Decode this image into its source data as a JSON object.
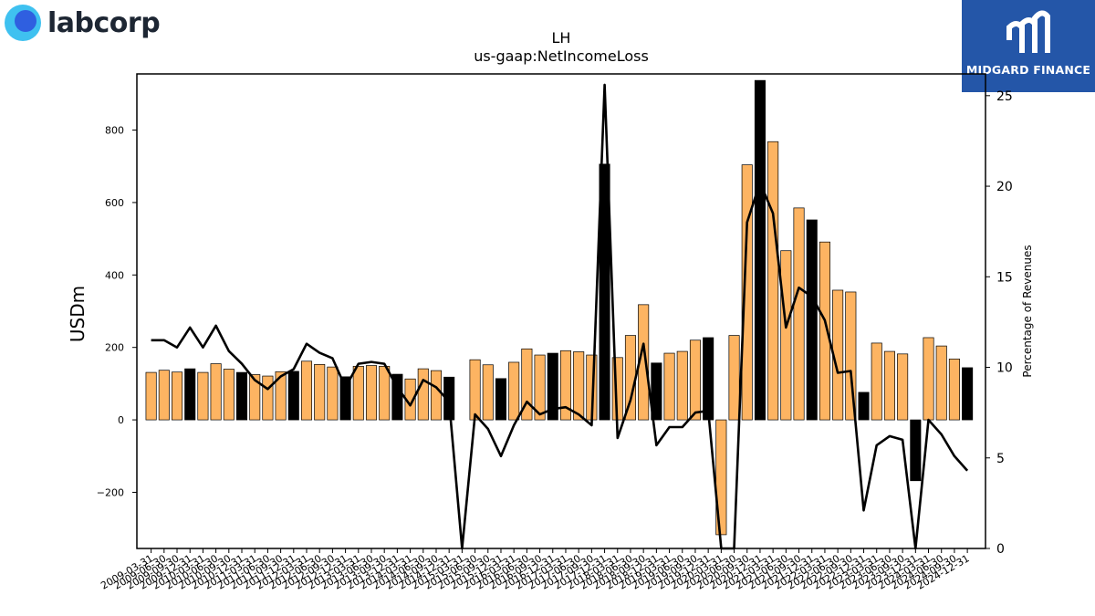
{
  "header": {
    "company_logo_text": "labcorp",
    "sponsor_logo_text": "MIDGARD FINANCE"
  },
  "colors": {
    "bar_normal": "#fdb462",
    "bar_highlight": "#000000",
    "line": "#000000",
    "logo_ring": "#3fc1f0",
    "logo_core": "#2f5fe0",
    "sponsor_bg": "#2456a8"
  },
  "chart_data": {
    "type": "bar",
    "title": "LH",
    "subtitle": "us-gaap:NetIncomeLoss",
    "ylabel": "USDm",
    "y2label": "Percentage of Revenues",
    "ylim": [
      -355,
      955
    ],
    "y2lim": [
      0,
      26.2
    ],
    "yticks": [
      -200,
      0,
      200,
      400,
      600,
      800
    ],
    "y2ticks": [
      0,
      5,
      10,
      15,
      20,
      25
    ],
    "grid": false,
    "categories": [
      "2009-03-31",
      "2009-06-30",
      "2009-09-30",
      "2009-12-31",
      "2010-03-31",
      "2010-06-30",
      "2010-09-30",
      "2010-12-31",
      "2011-03-31",
      "2011-06-30",
      "2011-09-30",
      "2011-12-31",
      "2012-03-31",
      "2012-06-30",
      "2012-09-30",
      "2012-12-31",
      "2013-03-31",
      "2013-06-30",
      "2013-09-30",
      "2013-12-31",
      "2014-03-31",
      "2014-06-30",
      "2014-09-30",
      "2014-12-31",
      "2015-03-31",
      "2015-06-30",
      "2015-09-30",
      "2015-12-31",
      "2016-03-31",
      "2016-06-30",
      "2016-09-30",
      "2016-12-31",
      "2017-03-31",
      "2017-06-30",
      "2017-09-30",
      "2017-12-31",
      "2018-03-31",
      "2018-06-30",
      "2018-09-30",
      "2018-12-31",
      "2019-03-31",
      "2019-06-30",
      "2019-09-30",
      "2019-12-31",
      "2020-03-31",
      "2020-06-30",
      "2020-09-30",
      "2020-12-31",
      "2021-03-31",
      "2021-06-30",
      "2021-09-30",
      "2021-12-31",
      "2022-03-31",
      "2022-06-30",
      "2022-09-30",
      "2022-12-31",
      "2023-03-31",
      "2023-06-30",
      "2023-09-30",
      "2023-12-31",
      "2024-03-31",
      "2024-06-30",
      "2024-09-30",
      "2024-12-31"
    ],
    "series": [
      {
        "type": "bar",
        "values": [
          131,
          137,
          132,
          141,
          131,
          155,
          140,
          131,
          125,
          121,
          133,
          134,
          162,
          153,
          146,
          119,
          148,
          150,
          148,
          126,
          113,
          141,
          136,
          118,
          null,
          166,
          152,
          114,
          159,
          196,
          179,
          184,
          191,
          188,
          179,
          706,
          172,
          233,
          318,
          157,
          184,
          189,
          220,
          227,
          -317,
          233,
          704,
          937,
          768,
          467,
          585,
          552,
          491,
          358,
          353,
          76,
          212,
          189,
          182,
          -168,
          227,
          204,
          168,
          144
        ],
        "highlight_index": [
          3,
          7,
          11,
          15,
          19,
          23,
          27,
          31,
          35,
          39,
          43,
          47,
          51,
          55,
          59,
          63
        ]
      },
      {
        "type": "line",
        "axis": "secondary",
        "values": [
          11.5,
          11.5,
          11.1,
          12.2,
          11.1,
          12.3,
          10.9,
          10.2,
          9.3,
          8.8,
          9.5,
          9.9,
          11.3,
          10.8,
          10.5,
          8.9,
          10.2,
          10.3,
          10.2,
          8.9,
          7.9,
          9.3,
          8.9,
          8.1,
          0,
          7.4,
          6.6,
          5.1,
          6.8,
          8.1,
          7.4,
          7.7,
          7.8,
          7.4,
          6.8,
          25.6,
          6.1,
          8.2,
          11.3,
          5.7,
          6.7,
          6.7,
          7.5,
          7.6,
          0,
          0,
          18.0,
          20.2,
          18.5,
          12.2,
          14.4,
          13.9,
          12.6,
          9.7,
          9.8,
          2.1,
          5.7,
          6.2,
          6.0,
          0,
          7.1,
          6.3,
          5.1,
          4.3
        ]
      }
    ]
  }
}
